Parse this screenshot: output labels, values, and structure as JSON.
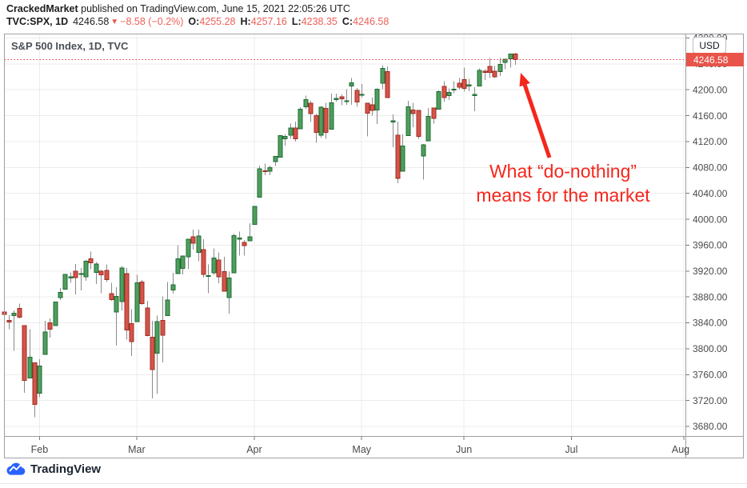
{
  "header": {
    "author": "CrackedMarket",
    "publish_info": " published on TradingView.com, June 15, 2021 22:05:26 UTC",
    "symbol": "TVC:SPX, 1D",
    "last_price": "4246.58",
    "direction_icon": "▼",
    "change": "−8.58 (−0.2%)",
    "ohlc": [
      {
        "label": "O:",
        "value": "4255.28"
      },
      {
        "label": "H:",
        "value": "4257.16"
      },
      {
        "label": "L:",
        "value": "4238.35"
      },
      {
        "label": "C:",
        "value": "4246.58"
      }
    ]
  },
  "chart": {
    "watermark_title": "S&P 500 Index, 1D, TVC",
    "currency_button": "USD",
    "price_label": "4246.58",
    "annotation": {
      "line1": "What “do-nothing”",
      "line2": "means for the market"
    },
    "colors": {
      "up_fill": "#4f9e5e",
      "up_border": "#1f6b33",
      "down_fill": "#d5544a",
      "down_border": "#9f2d23",
      "wick": "#8a8a8a",
      "grid": "#ececec",
      "pane_border": "#a0a0a0",
      "axis_text": "#4a4a4a",
      "dotted_line": "#f23645",
      "price_label_bg": "#e8544a",
      "annotation_red": "#f5271d",
      "logo_blue": "#2962ff"
    }
  },
  "footer": {
    "logo_text": "TradingView"
  },
  "chart_data": {
    "type": "candlestick",
    "title": "S&P 500 Index, 1D, TVC",
    "symbol": "TVC:SPX",
    "timeframe": "1D",
    "currency": "USD",
    "last_price": 4246.58,
    "y_range": [
      3680,
      4280
    ],
    "grid": true,
    "y_axis_ticks": [
      4280,
      4240,
      4200,
      4160,
      4120,
      4080,
      4040,
      4000,
      3960,
      3920,
      3880,
      3840,
      3800,
      3760,
      3720,
      3680
    ],
    "month_ticks": [
      {
        "label": "Feb",
        "bar_index": 7
      },
      {
        "label": "Mar",
        "bar_index": 26
      },
      {
        "label": "Apr",
        "bar_index": 49
      },
      {
        "label": "May",
        "bar_index": 70
      },
      {
        "label": "Jun",
        "bar_index": 90
      },
      {
        "label": "Jul",
        "bar_index": 111
      },
      {
        "label": "Aug",
        "bar_index": 133
      }
    ],
    "candles_format": [
      "open",
      "high",
      "low",
      "close"
    ],
    "candles": [
      [
        3857,
        3861,
        3845,
        3853
      ],
      [
        3844,
        3852,
        3830,
        3841
      ],
      [
        3851,
        3859,
        3797,
        3855
      ],
      [
        3862,
        3870,
        3847,
        3849
      ],
      [
        3836,
        3836,
        3732,
        3751
      ],
      [
        3755,
        3830,
        3755,
        3787
      ],
      [
        3778,
        3778,
        3694,
        3714
      ],
      [
        3731,
        3784,
        3725,
        3773
      ],
      [
        3791,
        3843,
        3791,
        3826
      ],
      [
        3840,
        3847,
        3817,
        3830
      ],
      [
        3836,
        3872,
        3836,
        3872
      ],
      [
        3879,
        3894,
        3875,
        3887
      ],
      [
        3892,
        3915,
        3892,
        3915
      ],
      [
        3910,
        3918,
        3902,
        3911
      ],
      [
        3920,
        3931,
        3884,
        3910
      ],
      [
        3916,
        3925,
        3890,
        3916
      ],
      [
        3911,
        3937,
        3905,
        3935
      ],
      [
        3939,
        3950,
        3923,
        3933
      ],
      [
        3918,
        3934,
        3900,
        3931
      ],
      [
        3920,
        3922,
        3886,
        3914
      ],
      [
        3921,
        3930,
        3903,
        3907
      ],
      [
        3885,
        3902,
        3874,
        3876
      ],
      [
        3857,
        3895,
        3805,
        3881
      ],
      [
        3873,
        3928,
        3859,
        3925
      ],
      [
        3916,
        3925,
        3814,
        3829
      ],
      [
        3839,
        3861,
        3789,
        3811
      ],
      [
        3842,
        3914,
        3842,
        3902
      ],
      [
        3903,
        3906,
        3868,
        3870
      ],
      [
        3863,
        3874,
        3819,
        3820
      ],
      [
        3818,
        3843,
        3723,
        3768
      ],
      [
        3793,
        3851,
        3730,
        3842
      ],
      [
        3844,
        3881,
        3779,
        3821
      ],
      [
        3851,
        3903,
        3851,
        3875
      ],
      [
        3891,
        3917,
        3885,
        3899
      ],
      [
        3916,
        3960,
        3916,
        3939
      ],
      [
        3924,
        3944,
        3915,
        3943
      ],
      [
        3942,
        3970,
        3923,
        3969
      ],
      [
        3973,
        3984,
        3953,
        3963
      ],
      [
        3949,
        3984,
        3935,
        3974
      ],
      [
        3953,
        3969,
        3910,
        3915
      ],
      [
        3913,
        3930,
        3886,
        3913
      ],
      [
        3917,
        3955,
        3914,
        3940
      ],
      [
        3937,
        3949,
        3901,
        3911
      ],
      [
        3919,
        3942,
        3889,
        3889
      ],
      [
        3879,
        3919,
        3854,
        3909
      ],
      [
        3917,
        3978,
        3917,
        3975
      ],
      [
        3969,
        3981,
        3944,
        3971
      ],
      [
        3964,
        3968,
        3944,
        3959
      ],
      [
        3967,
        3994,
        3966,
        3973
      ],
      [
        3992,
        4020,
        3992,
        4020
      ],
      [
        4034,
        4083,
        4034,
        4078
      ],
      [
        4075,
        4086,
        4068,
        4074
      ],
      [
        4074,
        4083,
        4068,
        4080
      ],
      [
        4089,
        4098,
        4082,
        4097
      ],
      [
        4096,
        4129,
        4095,
        4129
      ],
      [
        4124,
        4131,
        4114,
        4128
      ],
      [
        4130,
        4148,
        4124,
        4141
      ],
      [
        4141,
        4151,
        4120,
        4124
      ],
      [
        4140,
        4173,
        4140,
        4170
      ],
      [
        4174,
        4191,
        4170,
        4185
      ],
      [
        4179,
        4183,
        4150,
        4163
      ],
      [
        4160,
        4163,
        4118,
        4134
      ],
      [
        4130,
        4175,
        4126,
        4173
      ],
      [
        4171,
        4180,
        4124,
        4134
      ],
      [
        4139,
        4194,
        4139,
        4180
      ],
      [
        4185,
        4194,
        4182,
        4187
      ],
      [
        4189,
        4193,
        4176,
        4186
      ],
      [
        4183,
        4201,
        4177,
        4183
      ],
      [
        4206,
        4218,
        4177,
        4211
      ],
      [
        4199,
        4203,
        4174,
        4181
      ],
      [
        4192,
        4209,
        4188,
        4193
      ],
      [
        4179,
        4179,
        4128,
        4164
      ],
      [
        4177,
        4188,
        4160,
        4168
      ],
      [
        4169,
        4202,
        4147,
        4201
      ],
      [
        4210,
        4238,
        4201,
        4233
      ],
      [
        4228,
        4236,
        4188,
        4188
      ],
      [
        4150,
        4162,
        4111,
        4152
      ],
      [
        4130,
        4151,
        4056,
        4063
      ],
      [
        4074,
        4131,
        4074,
        4113
      ],
      [
        4129,
        4183,
        4129,
        4174
      ],
      [
        4169,
        4180,
        4142,
        4163
      ],
      [
        4168,
        4169,
        4124,
        4128
      ],
      [
        4098,
        4116,
        4061,
        4115
      ],
      [
        4121,
        4172,
        4121,
        4159
      ],
      [
        4172,
        4172,
        4148,
        4156
      ],
      [
        4170,
        4199,
        4170,
        4197
      ],
      [
        4205,
        4213,
        4182,
        4188
      ],
      [
        4191,
        4202,
        4184,
        4196
      ],
      [
        4201,
        4213,
        4195,
        4201
      ],
      [
        4210,
        4218,
        4200,
        4204
      ],
      [
        4216,
        4234,
        4197,
        4202
      ],
      [
        4206,
        4217,
        4198,
        4208
      ],
      [
        4191,
        4204,
        4167,
        4193
      ],
      [
        4206,
        4233,
        4206,
        4230
      ],
      [
        4229,
        4232,
        4215,
        4227
      ],
      [
        4236,
        4249,
        4218,
        4227
      ],
      [
        4229,
        4237,
        4218,
        4220
      ],
      [
        4228,
        4249,
        4221,
        4239
      ],
      [
        4242,
        4248,
        4232,
        4247
      ],
      [
        4248,
        4255,
        4234,
        4255
      ],
      [
        4255.28,
        4257.16,
        4238.35,
        4246.58
      ]
    ],
    "annotation": {
      "text": "What “do-nothing” means for the market",
      "points_at": "last candle (Jun 15)"
    }
  }
}
